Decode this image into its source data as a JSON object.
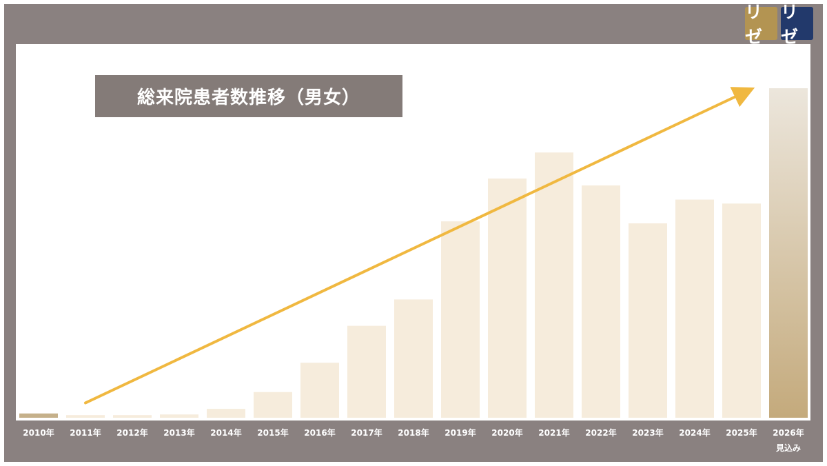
{
  "logos": [
    {
      "text": "リゼ",
      "color": "#b39452"
    },
    {
      "text": "リゼ",
      "color": "#22396b"
    }
  ],
  "colors": {
    "frame": "#8a8180",
    "bar": "#f6ecdc",
    "bar_first": "#c5b08a",
    "highlight_top": "#ece6dc",
    "highlight_bottom": "#c4aa7c",
    "trend_arrow": "#f0b840"
  },
  "chart_data": {
    "type": "bar",
    "title": "総来院患者数推移（男女）",
    "categories": [
      "2010年",
      "2011年",
      "2012年",
      "2013年",
      "2014年",
      "2015年",
      "2016年",
      "2017年",
      "2018年",
      "2019年",
      "2020年",
      "2021年",
      "2022年",
      "2023年",
      "2024年",
      "2025年",
      "2026年"
    ],
    "sublabels": [
      "",
      "",
      "",
      "",
      "",
      "",
      "",
      "",
      "",
      "",
      "",
      "",
      "",
      "",
      "",
      "",
      "見込み"
    ],
    "values": [
      1.3,
      0.8,
      0.8,
      1.0,
      2.7,
      7.8,
      16.7,
      27.9,
      35.9,
      59.6,
      72.6,
      80.5,
      70.5,
      59.0,
      66.2,
      65.0,
      100
    ],
    "highlight_index": 16,
    "ylim": [
      0,
      100
    ],
    "trend_arrow": {
      "from_index": 1,
      "to_index": 16,
      "from_value": 4.5,
      "to_value": 99.5
    },
    "grid": false,
    "legend": "none"
  }
}
